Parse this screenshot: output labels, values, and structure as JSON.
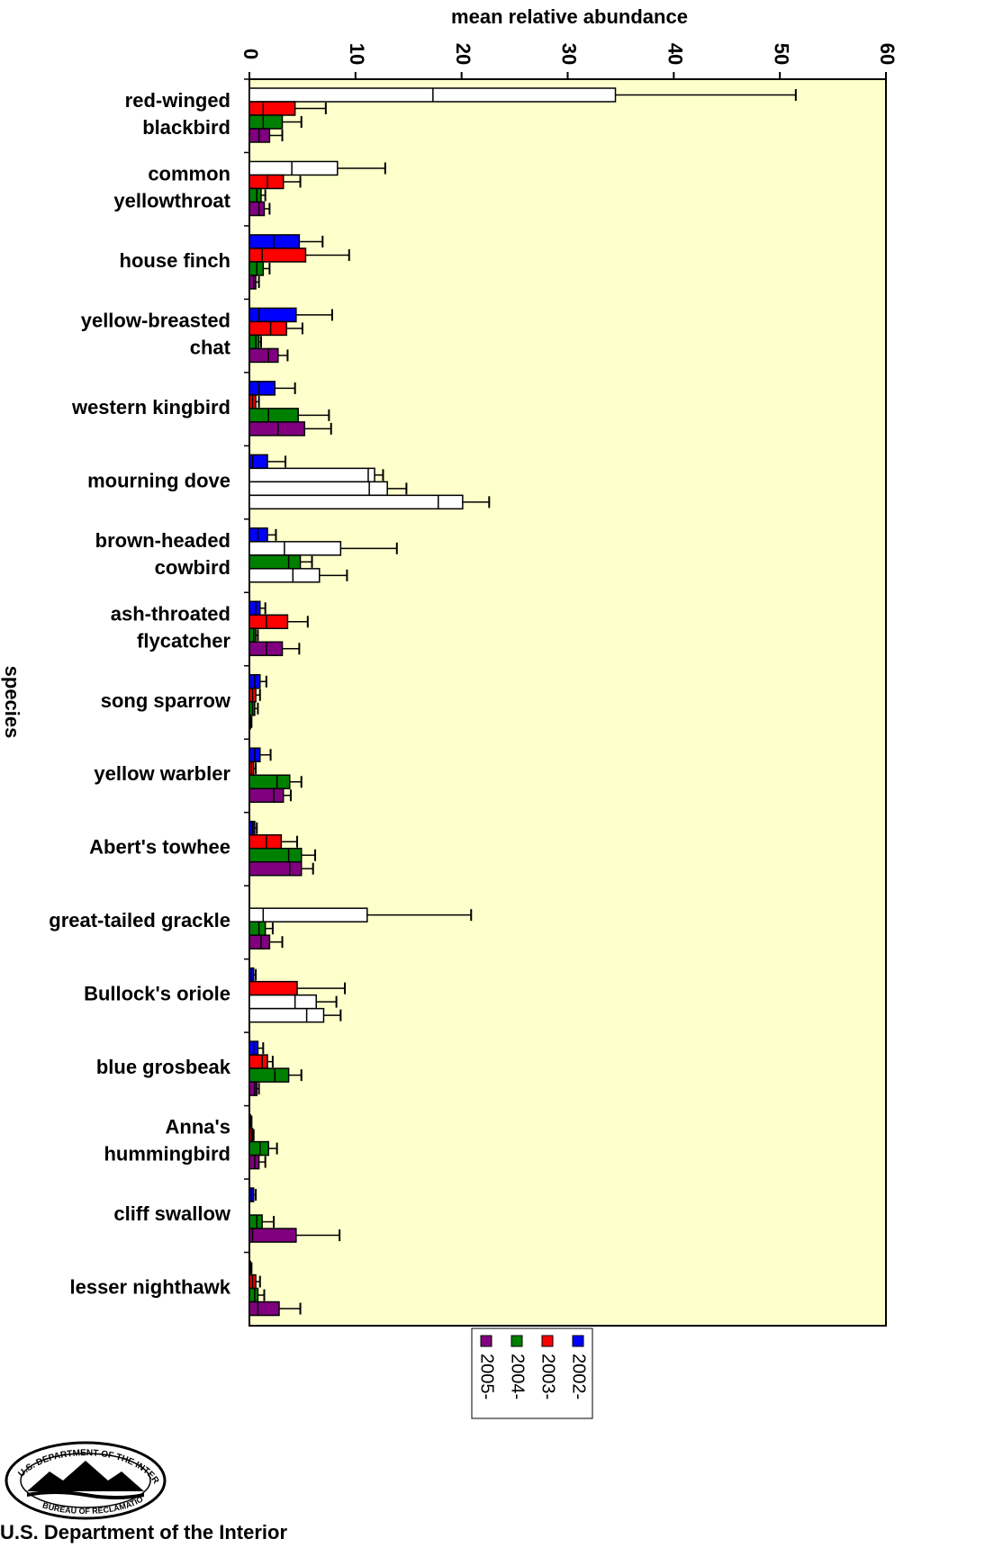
{
  "chart_data": {
    "type": "bar",
    "orientation": "horizontal",
    "title": "",
    "xlabel": "mean relative abundance",
    "ylabel": "species",
    "xlim": [
      0,
      60
    ],
    "xticks": [
      "0",
      "10",
      "20",
      "30",
      "40",
      "50",
      "60"
    ],
    "tick_label_rotation": "90 (read top-to-bottom)",
    "grid": false,
    "plot_background": "#ffffcc",
    "legend": {
      "placement": "bottom-center",
      "rotation": "90",
      "entries": [
        {
          "label": "2005-",
          "color": "#800080"
        },
        {
          "label": "2004-",
          "color": "#008000"
        },
        {
          "label": "2003-",
          "color": "#ff0000"
        },
        {
          "label": "2002-",
          "color": "#0000ff"
        }
      ]
    },
    "bar_order_within_group_top_to_bottom": [
      "2002-",
      "2003-",
      "2004-",
      "2005-"
    ],
    "note_unfilled_bars": "Bars whose values exceed the axis-scaled region are drawn unfilled (white) in the original.",
    "species": [
      {
        "label": [
          "red-winged",
          "blackbird"
        ],
        "bars": [
          {
            "series": "2002-",
            "lo": 17.3,
            "mean": 34.5,
            "err": 51.5,
            "filled": false
          },
          {
            "series": "2003-",
            "lo": 1.3,
            "mean": 4.3,
            "err": 7.2,
            "filled": true
          },
          {
            "series": "2004-",
            "lo": 1.3,
            "mean": 3.1,
            "err": 4.9,
            "filled": true
          },
          {
            "series": "2005-",
            "lo": 0.9,
            "mean": 1.9,
            "err": 3.1,
            "filled": true
          }
        ]
      },
      {
        "label": [
          "common",
          "yellowthroat"
        ],
        "bars": [
          {
            "series": "2002-",
            "lo": 4.0,
            "mean": 8.3,
            "err": 12.8,
            "filled": false
          },
          {
            "series": "2003-",
            "lo": 1.7,
            "mean": 3.2,
            "err": 4.8,
            "filled": true
          },
          {
            "series": "2004-",
            "lo": 0.7,
            "mean": 1.1,
            "err": 1.5,
            "filled": true
          },
          {
            "series": "2005-",
            "lo": 0.9,
            "mean": 1.4,
            "err": 1.9,
            "filled": true
          }
        ]
      },
      {
        "label": [
          "house finch"
        ],
        "bars": [
          {
            "series": "2002-",
            "lo": 2.3,
            "mean": 4.7,
            "err": 6.9,
            "filled": true
          },
          {
            "series": "2003-",
            "lo": 1.2,
            "mean": 5.3,
            "err": 9.4,
            "filled": true
          },
          {
            "series": "2004-",
            "lo": 0.7,
            "mean": 1.3,
            "err": 1.9,
            "filled": true
          },
          {
            "series": "2005-",
            "lo": 0.4,
            "mean": 0.6,
            "err": 0.9,
            "filled": true
          }
        ]
      },
      {
        "label": [
          "yellow-breasted",
          "chat"
        ],
        "bars": [
          {
            "series": "2002-",
            "lo": 0.9,
            "mean": 4.4,
            "err": 7.8,
            "filled": true
          },
          {
            "series": "2003-",
            "lo": 2.0,
            "mean": 3.5,
            "err": 5.0,
            "filled": true
          },
          {
            "series": "2004-",
            "lo": 0.6,
            "mean": 0.9,
            "err": 1.1,
            "filled": true
          },
          {
            "series": "2005-",
            "lo": 1.8,
            "mean": 2.7,
            "err": 3.6,
            "filled": true
          }
        ]
      },
      {
        "label": [
          "western kingbird"
        ],
        "bars": [
          {
            "series": "2002-",
            "lo": 0.9,
            "mean": 2.4,
            "err": 4.3,
            "filled": true
          },
          {
            "series": "2003-",
            "lo": 0.3,
            "mean": 0.6,
            "err": 0.9,
            "filled": true
          },
          {
            "series": "2004-",
            "lo": 1.8,
            "mean": 4.6,
            "err": 7.5,
            "filled": true
          },
          {
            "series": "2005-",
            "lo": 2.7,
            "mean": 5.2,
            "err": 7.7,
            "filled": true
          }
        ]
      },
      {
        "label": [
          "mourning dove"
        ],
        "bars": [
          {
            "series": "2002-",
            "lo": 0.3,
            "mean": 1.7,
            "err": 3.4,
            "filled": true
          },
          {
            "series": "2003-",
            "lo": 11.2,
            "mean": 11.8,
            "err": 12.6,
            "filled": false
          },
          {
            "series": "2004-",
            "lo": 11.3,
            "mean": 13.0,
            "err": 14.8,
            "filled": false
          },
          {
            "series": "2005-",
            "lo": 17.8,
            "mean": 20.1,
            "err": 22.6,
            "filled": false
          }
        ]
      },
      {
        "label": [
          "brown-headed",
          "cowbird"
        ],
        "bars": [
          {
            "series": "2002-",
            "lo": 0.8,
            "mean": 1.7,
            "err": 2.5,
            "filled": true
          },
          {
            "series": "2003-",
            "lo": 3.3,
            "mean": 8.6,
            "err": 13.9,
            "filled": false
          },
          {
            "series": "2004-",
            "lo": 3.7,
            "mean": 4.8,
            "err": 5.9,
            "filled": true
          },
          {
            "series": "2005-",
            "lo": 4.1,
            "mean": 6.6,
            "err": 9.2,
            "filled": false
          }
        ]
      },
      {
        "label": [
          "ash-throated",
          "flycatcher"
        ],
        "bars": [
          {
            "series": "2002-",
            "lo": 0.6,
            "mean": 1.0,
            "err": 1.5,
            "filled": true
          },
          {
            "series": "2003-",
            "lo": 1.6,
            "mean": 3.6,
            "err": 5.5,
            "filled": true
          },
          {
            "series": "2004-",
            "lo": 0.4,
            "mean": 0.6,
            "err": 0.8,
            "filled": true
          },
          {
            "series": "2005-",
            "lo": 1.6,
            "mean": 3.1,
            "err": 4.7,
            "filled": true
          }
        ]
      },
      {
        "label": [
          "song sparrow"
        ],
        "bars": [
          {
            "series": "2002-",
            "lo": 0.5,
            "mean": 1.0,
            "err": 1.6,
            "filled": true
          },
          {
            "series": "2003-",
            "lo": 0.3,
            "mean": 0.6,
            "err": 1.0,
            "filled": true
          },
          {
            "series": "2004-",
            "lo": 0.3,
            "mean": 0.5,
            "err": 0.8,
            "filled": true
          },
          {
            "series": "2005-",
            "lo": 0.0,
            "mean": 0.1,
            "err": 0.2,
            "filled": true
          }
        ]
      },
      {
        "label": [
          "yellow warbler"
        ],
        "bars": [
          {
            "series": "2002-",
            "lo": 0.5,
            "mean": 1.0,
            "err": 2.0,
            "filled": true
          },
          {
            "series": "2003-",
            "lo": 0.2,
            "mean": 0.4,
            "err": 0.6,
            "filled": true
          },
          {
            "series": "2004-",
            "lo": 2.6,
            "mean": 3.8,
            "err": 4.9,
            "filled": true
          },
          {
            "series": "2005-",
            "lo": 2.3,
            "mean": 3.2,
            "err": 3.9,
            "filled": true
          }
        ]
      },
      {
        "label": [
          "Abert's towhee"
        ],
        "bars": [
          {
            "series": "2002-",
            "lo": 0.3,
            "mean": 0.5,
            "err": 0.7,
            "filled": true
          },
          {
            "series": "2003-",
            "lo": 1.6,
            "mean": 3.0,
            "err": 4.5,
            "filled": true
          },
          {
            "series": "2004-",
            "lo": 3.7,
            "mean": 4.9,
            "err": 6.2,
            "filled": true
          },
          {
            "series": "2005-",
            "lo": 3.8,
            "mean": 4.9,
            "err": 6.0,
            "filled": true
          }
        ]
      },
      {
        "label": [
          "great-tailed grackle"
        ],
        "bars": [
          {
            "series": "2002-",
            "lo": 0.0,
            "mean": 0.0,
            "err": 0.0,
            "filled": true
          },
          {
            "series": "2003-",
            "lo": 1.3,
            "mean": 11.1,
            "err": 20.9,
            "filled": false
          },
          {
            "series": "2004-",
            "lo": 0.9,
            "mean": 1.5,
            "err": 2.2,
            "filled": true
          },
          {
            "series": "2005-",
            "lo": 1.1,
            "mean": 1.9,
            "err": 3.1,
            "filled": true
          }
        ]
      },
      {
        "label": [
          "Bullock's oriole"
        ],
        "bars": [
          {
            "series": "2002-",
            "lo": 0.2,
            "mean": 0.4,
            "err": 0.6,
            "filled": true
          },
          {
            "series": "2003-",
            "lo": 0.0,
            "mean": 4.5,
            "err": 9.0,
            "filled": true
          },
          {
            "series": "2004-",
            "lo": 4.3,
            "mean": 6.3,
            "err": 8.2,
            "filled": false
          },
          {
            "series": "2005-",
            "lo": 5.4,
            "mean": 7.0,
            "err": 8.6,
            "filled": false
          }
        ]
      },
      {
        "label": [
          "blue grosbeak"
        ],
        "bars": [
          {
            "series": "2002-",
            "lo": 0.4,
            "mean": 0.8,
            "err": 1.3,
            "filled": true
          },
          {
            "series": "2003-",
            "lo": 1.2,
            "mean": 1.7,
            "err": 2.2,
            "filled": true
          },
          {
            "series": "2004-",
            "lo": 2.4,
            "mean": 3.7,
            "err": 4.9,
            "filled": true
          },
          {
            "series": "2005-",
            "lo": 0.5,
            "mean": 0.7,
            "err": 0.9,
            "filled": true
          }
        ]
      },
      {
        "label": [
          "Anna's",
          "hummingbird"
        ],
        "bars": [
          {
            "series": "2002-",
            "lo": 0.0,
            "mean": 0.1,
            "err": 0.2,
            "filled": true
          },
          {
            "series": "2003-",
            "lo": 0.2,
            "mean": 0.3,
            "err": 0.4,
            "filled": true
          },
          {
            "series": "2004-",
            "lo": 1.0,
            "mean": 1.8,
            "err": 2.6,
            "filled": true
          },
          {
            "series": "2005-",
            "lo": 0.5,
            "mean": 0.9,
            "err": 1.5,
            "filled": true
          }
        ]
      },
      {
        "label": [
          "cliff swallow"
        ],
        "bars": [
          {
            "series": "2002-",
            "lo": 0.2,
            "mean": 0.4,
            "err": 0.6,
            "filled": true
          },
          {
            "series": "2003-",
            "lo": 0.0,
            "mean": 0.0,
            "err": 0.0,
            "filled": true
          },
          {
            "series": "2004-",
            "lo": 0.7,
            "mean": 1.2,
            "err": 2.3,
            "filled": true
          },
          {
            "series": "2005-",
            "lo": 0.3,
            "mean": 4.4,
            "err": 8.5,
            "filled": true
          }
        ]
      },
      {
        "label": [
          "lesser nighthawk"
        ],
        "bars": [
          {
            "series": "2002-",
            "lo": 0.0,
            "mean": 0.1,
            "err": 0.2,
            "filled": true
          },
          {
            "series": "2003-",
            "lo": 0.3,
            "mean": 0.6,
            "err": 1.0,
            "filled": true
          },
          {
            "series": "2004-",
            "lo": 0.5,
            "mean": 0.8,
            "err": 1.4,
            "filled": true
          },
          {
            "series": "2005-",
            "lo": 0.8,
            "mean": 2.8,
            "err": 4.8,
            "filled": true
          }
        ]
      }
    ]
  },
  "seal": {
    "top_text": "U.S. DEPARTMENT OF THE INTERIOR",
    "bottom_text": "BUREAU OF RECLAMATION"
  },
  "footer": {
    "text": "U.S. Department of the Interior"
  }
}
